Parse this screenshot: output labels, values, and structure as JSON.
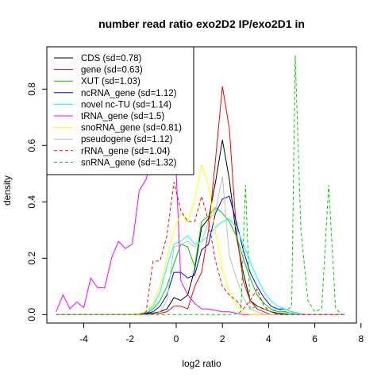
{
  "chart_data": {
    "type": "line",
    "title": "number read ratio exo2D2 IP/exo2D1 in",
    "xlabel": "log2 ratio",
    "ylabel": "density",
    "xlim": [
      -5.6,
      7.8
    ],
    "ylim": [
      -0.03,
      0.95
    ],
    "xticks": [
      -4,
      -2,
      0,
      2,
      4,
      6,
      8
    ],
    "yticks": [
      0.0,
      0.2,
      0.4,
      0.6,
      0.8
    ],
    "ytick_labels": [
      "0.0",
      "0.2",
      "0.4",
      "0.6",
      "0.8"
    ],
    "legend_position": "top-left",
    "series": [
      {
        "name": "CDS (sd=0.78)",
        "color": "#000000",
        "dash": "solid",
        "x": [
          -5.2,
          -1.6,
          -1.3,
          -1.0,
          -0.7,
          -0.4,
          -0.1,
          0.2,
          0.5,
          0.8,
          1.1,
          1.4,
          1.7,
          2.0,
          2.3,
          2.6,
          2.9,
          3.2,
          3.5,
          3.8,
          4.1,
          4.4,
          4.7,
          5.0,
          7.3
        ],
        "y": [
          0,
          0,
          0.003,
          0.005,
          0.01,
          0.02,
          0.06,
          0.05,
          0.07,
          0.16,
          0.31,
          0.34,
          0.47,
          0.62,
          0.48,
          0.28,
          0.15,
          0.05,
          0.03,
          0.02,
          0.01,
          0.005,
          0.003,
          0,
          0
        ]
      },
      {
        "name": "gene (sd=0.63)",
        "color": "#ff0000",
        "dash": "solid",
        "x": [
          -5.2,
          -1.6,
          -1.3,
          -1.0,
          -0.7,
          -0.4,
          -0.1,
          0.2,
          0.5,
          0.8,
          1.1,
          1.4,
          1.7,
          2.0,
          2.3,
          2.6,
          2.9,
          3.2,
          3.5,
          3.8,
          4.1,
          7.3
        ],
        "y": [
          0,
          0,
          0,
          0.003,
          0.005,
          0.01,
          0.03,
          0.03,
          0.02,
          0.1,
          0.15,
          0.3,
          0.55,
          0.81,
          0.66,
          0.3,
          0.12,
          0.05,
          0.02,
          0.01,
          0,
          0
        ]
      },
      {
        "name": "XUT (sd=1.03)",
        "color": "#00cd00",
        "dash": "solid",
        "x": [
          -5.2,
          -1.9,
          -1.6,
          -1.3,
          -1.0,
          -0.7,
          -0.4,
          -0.1,
          0.2,
          0.5,
          0.8,
          1.1,
          1.4,
          1.7,
          2.0,
          2.3,
          2.6,
          2.9,
          3.2,
          3.5,
          3.8,
          4.1,
          4.4,
          4.7,
          5.0,
          5.3,
          7.3
        ],
        "y": [
          0,
          0,
          0.003,
          0.005,
          0.02,
          0.05,
          0.1,
          0.18,
          0.25,
          0.24,
          0.17,
          0.33,
          0.35,
          0.38,
          0.36,
          0.33,
          0.28,
          0.2,
          0.13,
          0.07,
          0.04,
          0.02,
          0.01,
          0.01,
          0.005,
          0,
          0
        ]
      },
      {
        "name": "ncRNA_gene (sd=1.12)",
        "color": "#0000ff",
        "dash": "solid",
        "x": [
          -5.2,
          -1.9,
          -1.6,
          -1.3,
          -1.0,
          -0.7,
          -0.4,
          -0.1,
          0.2,
          0.5,
          0.8,
          1.1,
          1.4,
          1.7,
          2.0,
          2.3,
          2.6,
          2.9,
          3.2,
          3.5,
          3.8,
          4.1,
          4.4,
          4.7,
          5.0,
          5.3,
          5.6,
          7.3
        ],
        "y": [
          0,
          0,
          0.003,
          0.005,
          0.01,
          0.03,
          0.07,
          0.15,
          0.15,
          0.13,
          0.14,
          0.23,
          0.25,
          0.36,
          0.41,
          0.42,
          0.33,
          0.23,
          0.15,
          0.1,
          0.06,
          0.03,
          0.02,
          0.02,
          0.01,
          0.005,
          0,
          0
        ]
      },
      {
        "name": "novel nc-TU (sd=1.14)",
        "color": "#00ffff",
        "dash": "solid",
        "x": [
          -5.2,
          -1.9,
          -1.6,
          -1.3,
          -1.0,
          -0.7,
          -0.4,
          -0.1,
          0.2,
          0.5,
          0.8,
          1.1,
          1.4,
          1.7,
          2.0,
          2.3,
          2.6,
          2.9,
          3.2,
          3.5,
          3.8,
          4.1,
          4.4,
          4.7,
          5.0,
          5.3,
          5.6,
          7.3
        ],
        "y": [
          0,
          0,
          0.003,
          0.01,
          0.03,
          0.08,
          0.17,
          0.25,
          0.26,
          0.28,
          0.25,
          0.26,
          0.28,
          0.31,
          0.33,
          0.34,
          0.31,
          0.25,
          0.19,
          0.13,
          0.08,
          0.05,
          0.03,
          0.02,
          0.01,
          0.005,
          0,
          0
        ]
      },
      {
        "name": "tRNA_gene (sd=1.5)",
        "color": "#ff00ff",
        "dash": "solid",
        "x": [
          -5.2,
          -4.9,
          -4.6,
          -4.3,
          -4.0,
          -3.7,
          -3.4,
          -3.1,
          -2.8,
          -2.5,
          -2.2,
          -1.9,
          -1.6,
          -1.3,
          -1.0,
          -0.7,
          -0.4,
          -0.1,
          0.2,
          0.5,
          0.8,
          1.1,
          1.4,
          1.7,
          2.0,
          2.3,
          2.6,
          2.9,
          3.2,
          7.3
        ],
        "y": [
          0.01,
          0.07,
          0.02,
          0.045,
          0.025,
          0.13,
          0.095,
          0.095,
          0.2,
          0.26,
          0.235,
          0.25,
          0.44,
          0.48,
          0.58,
          0.57,
          0.53,
          0.7,
          0.12,
          0.07,
          0.04,
          0.02,
          0.02,
          0.015,
          0.01,
          0.01,
          0.005,
          0,
          0,
          0
        ]
      },
      {
        "name": "snoRNA_gene (sd=0.81)",
        "color": "#ffff00",
        "dash": "solid",
        "x": [
          -5.2,
          -1.9,
          -1.6,
          -1.3,
          -1.0,
          -0.7,
          -0.4,
          -0.1,
          0.2,
          0.5,
          0.8,
          1.1,
          1.4,
          1.7,
          2.0,
          2.3,
          2.6,
          2.9,
          3.2,
          7.3
        ],
        "y": [
          0,
          0,
          0.003,
          0.01,
          0.04,
          0.1,
          0.2,
          0.3,
          0.36,
          0.33,
          0.41,
          0.53,
          0.46,
          0.29,
          0.16,
          0.08,
          0.03,
          0.01,
          0,
          0
        ]
      },
      {
        "name": "pseudogene (sd=1.12)",
        "color": "#bebebe",
        "dash": "solid",
        "x": [
          -5.2,
          -1.0,
          -0.7,
          -0.4,
          -0.1,
          0.2,
          0.5,
          0.8,
          1.1,
          1.4,
          1.7,
          2.0,
          2.3,
          2.6,
          2.9,
          3.2,
          3.5,
          3.8,
          7.3
        ],
        "y": [
          0,
          0,
          0.01,
          0.05,
          0.24,
          0.25,
          0.26,
          0.24,
          0.26,
          0.33,
          0.37,
          0.49,
          0.21,
          0.13,
          0.06,
          0.02,
          0.01,
          0,
          0
        ]
      },
      {
        "name": "rRNA_gene (sd=1.04)",
        "color": "#ff0000",
        "dash": "dashed",
        "x": [
          -5.2,
          -1.6,
          -1.3,
          -1.0,
          -0.7,
          -0.4,
          -0.1,
          0.2,
          0.5,
          0.8,
          1.1,
          1.4,
          1.7,
          2.0,
          2.3,
          2.6,
          2.9,
          3.2,
          3.5,
          3.8,
          4.1,
          4.4,
          7.3
        ],
        "y": [
          0,
          0,
          0.01,
          0.19,
          0.19,
          0.28,
          0.47,
          0.37,
          0.33,
          0.33,
          0.42,
          0.33,
          0.19,
          0.1,
          0.07,
          0.05,
          0.02,
          0.05,
          0.09,
          0.03,
          0.01,
          0,
          0
        ]
      },
      {
        "name": "snRNA_gene (sd=1.32)",
        "color": "#00cd00",
        "dash": "dashed",
        "x": [
          -5.2,
          2.5,
          2.8,
          3.0,
          3.2,
          3.5,
          3.8,
          4.1,
          4.4,
          4.7,
          5.0,
          5.15,
          5.4,
          5.7,
          6.0,
          6.3,
          6.6,
          6.9,
          7.2,
          7.3
        ],
        "y": [
          0,
          0,
          0.01,
          0.46,
          0.02,
          0.03,
          0.02,
          0.01,
          0.02,
          0.01,
          0.03,
          0.92,
          0.3,
          0.05,
          0.01,
          0.02,
          0.46,
          0.02,
          0,
          0
        ]
      }
    ]
  }
}
